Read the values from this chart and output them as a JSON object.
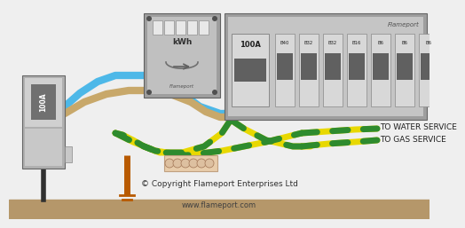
{
  "bg_color": "#efefef",
  "ground_color": "#b5976a",
  "text_copyright": "© Copyright Flameport Enterprises Ltd",
  "text_website": "www.flameport.com",
  "text_water": "TO WATER SERVICE",
  "text_gas": "TO GAS SERVICE",
  "flameport_label": "Flameport",
  "cu_color": "#9e9e9e",
  "cu_light": "#c5c5c5",
  "cu_lighter": "#d8d8d8",
  "meter_color": "#9e9e9e",
  "meter_light": "#c0c0c0",
  "cable_blue": "#4db8e8",
  "cable_brown": "#c8a86a",
  "gy_green": "#2e8b2e",
  "gy_yellow": "#e8d800",
  "isolator_color": "#b0b0b0",
  "isolator_light": "#d0d0d0",
  "earth_rod_color": "#b85a00",
  "earth_bar_fill": "#e8ccaa",
  "earth_bar_border": "#c0a080",
  "breaker_labels": [
    "B40",
    "B32",
    "B32",
    "B16",
    "B6",
    "B6",
    "B6"
  ],
  "black_cable": "#303030"
}
